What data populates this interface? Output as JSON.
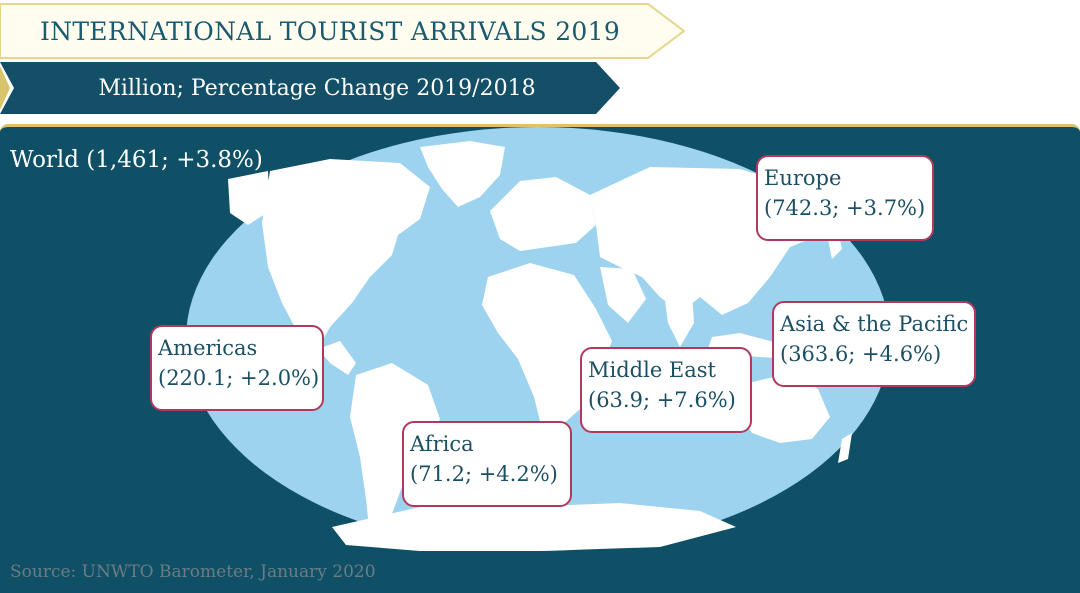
{
  "title": "INTERNATIONAL TOURIST ARRIVALS 2019",
  "subtitle": "Million; Percentage Change 2019/2018",
  "world": "World (1,461; +3.8%)",
  "regions": [
    {
      "name": "Europe",
      "value": "(742.3; +3.7%)"
    },
    {
      "name": "Americas",
      "value": "(220.1; +2.0%)"
    },
    {
      "name": "Asia & the Pacific",
      "value": "(363.6; +4.6%)"
    },
    {
      "name": "Middle East",
      "value": "(63.9; +7.6%)"
    },
    {
      "name": "Africa",
      "value": "(71.2; +4.2%)"
    }
  ],
  "source": "Source: UNWTO Barometer, January 2020",
  "colors": {
    "panel": "#0f5067",
    "ocean": "#9dd3ef",
    "land": "#ffffff",
    "box_border": "#b03a5c"
  }
}
